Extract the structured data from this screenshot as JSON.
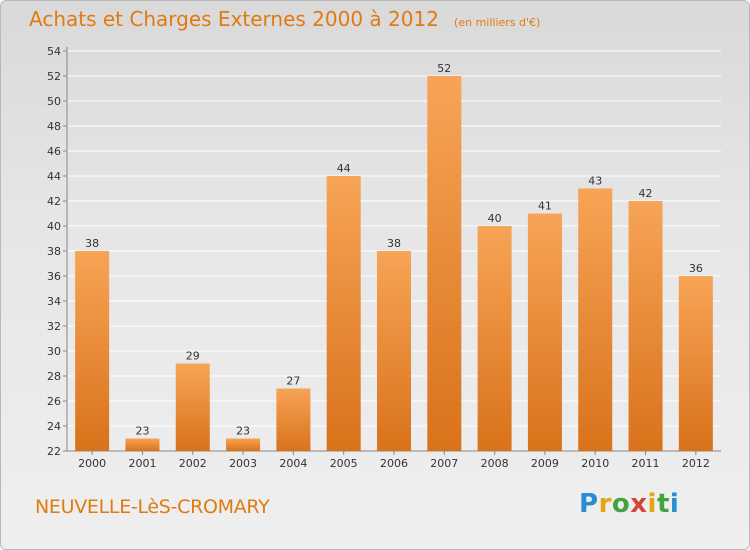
{
  "header": {
    "title": "Achats et Charges Externes 2000 à 2012",
    "subtitle": "(en milliers d'€)"
  },
  "footer": {
    "town": "NEUVELLE-LèS-CROMARY",
    "logo": "Proxiti"
  },
  "colors": {
    "bar": "#f0923a",
    "bar_light": "#f7a456",
    "bar_dark": "#d9721b",
    "title": "#e07a12",
    "grid": "#ffffff"
  },
  "chart_data": {
    "type": "bar",
    "title": "Achats et Charges Externes 2000 à 2012",
    "subtitle": "(en milliers d'€)",
    "categories": [
      "2000",
      "2001",
      "2002",
      "2003",
      "2004",
      "2005",
      "2006",
      "2007",
      "2008",
      "2009",
      "2010",
      "2011",
      "2012"
    ],
    "values": [
      38,
      23,
      29,
      23,
      27,
      44,
      38,
      52,
      40,
      41,
      43,
      42,
      36
    ],
    "ylim": [
      22,
      54
    ],
    "yticks": [
      22,
      24,
      26,
      28,
      30,
      32,
      34,
      36,
      38,
      40,
      42,
      44,
      46,
      48,
      50,
      52,
      54
    ],
    "grid": true,
    "legend": "none"
  }
}
